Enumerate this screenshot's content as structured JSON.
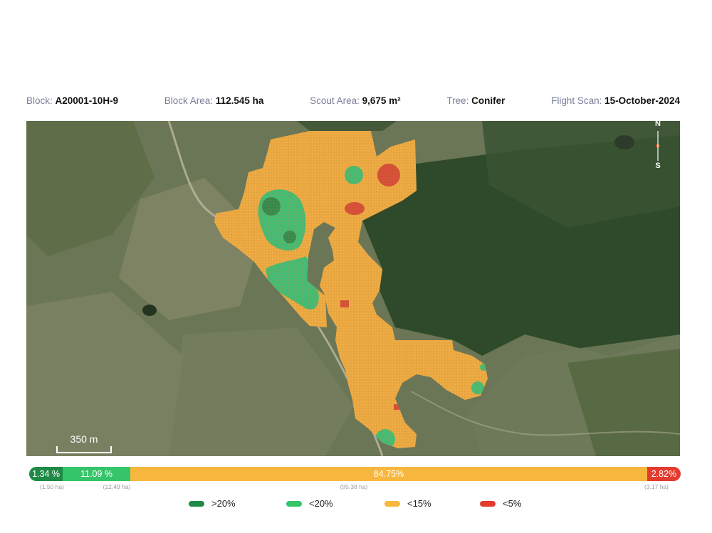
{
  "info": [
    {
      "label": "Block: ",
      "value": "A20001-10H-9"
    },
    {
      "label": "Block Area: ",
      "value": "112.545 ha"
    },
    {
      "label": "Scout Area: ",
      "value": "9,675 m²"
    },
    {
      "label": "Tree: ",
      "value": "Conifer"
    },
    {
      "label": "Flight Scan: ",
      "value": "15-October-2024"
    }
  ],
  "map": {
    "scale_label": "350 m",
    "compass": {
      "north": "N",
      "south": "S"
    }
  },
  "distribution": [
    {
      "percent": "1.34 %",
      "area": "(1.50 ha)",
      "color": "#1e8a46"
    },
    {
      "percent": "11.09 %",
      "area": "(12.49 ha)",
      "color": "#36c46a"
    },
    {
      "percent": "84.75%",
      "area": "(95.38 ha)",
      "color": "#f7b63d"
    },
    {
      "percent": "2.82%",
      "area": "(3.17 ha)",
      "color": "#e33b2e"
    }
  ],
  "legend": [
    {
      "label": ">20%",
      "color": "#1e8a46"
    },
    {
      "label": "<20%",
      "color": "#36c46a"
    },
    {
      "label": "<15%",
      "color": "#f7b63d"
    },
    {
      "label": "<5%",
      "color": "#e33b2e"
    }
  ]
}
